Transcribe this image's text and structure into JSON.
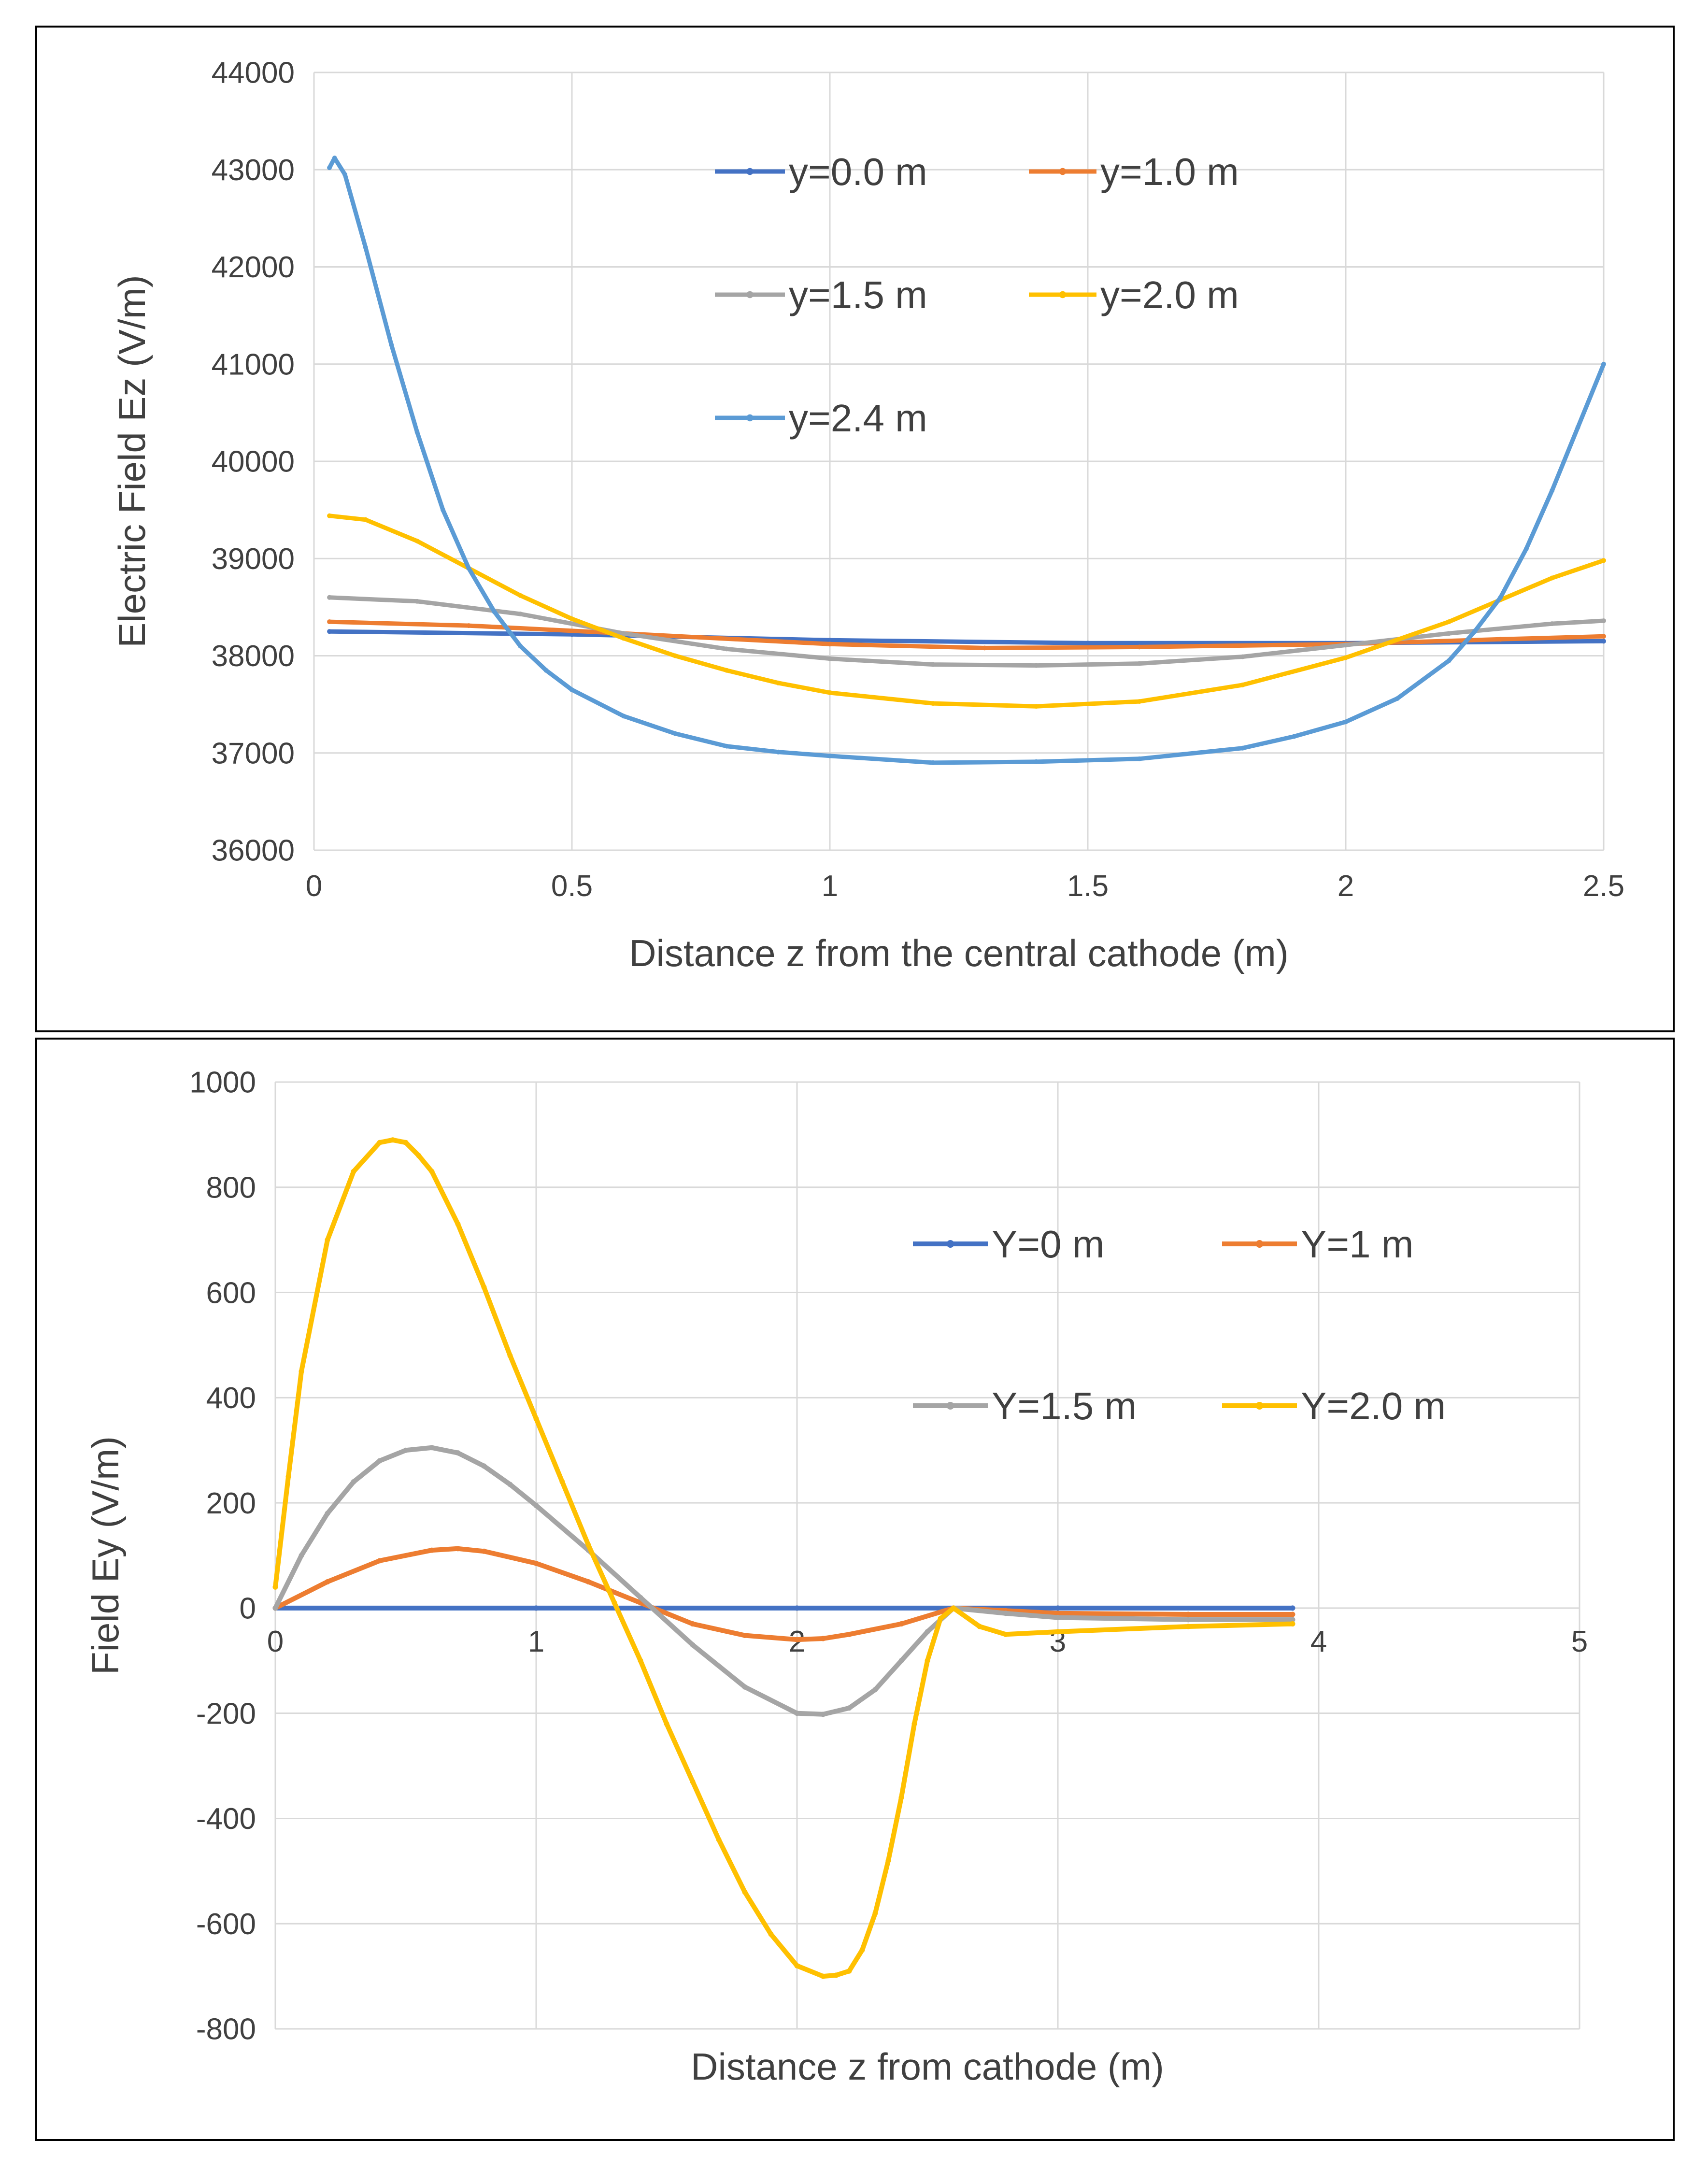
{
  "colors": {
    "blue": "#4472c4",
    "orange": "#ed7d31",
    "gray": "#a5a5a5",
    "yellow": "#ffc000",
    "lightblue": "#5b9bd5",
    "grid": "#d9d9d9",
    "text": "#404040"
  },
  "chart_data": [
    {
      "type": "line",
      "title": "",
      "xlabel": "Distance z from the central cathode (m)",
      "ylabel": "Electric Field Ez (V/m)",
      "xlim": [
        0,
        2.5
      ],
      "ylim": [
        36000,
        44000
      ],
      "xticks": [
        0,
        0.5,
        1,
        1.5,
        2,
        2.5
      ],
      "xtick_labels": [
        "0",
        "0.5",
        "1",
        "1.5",
        "2",
        "2.5"
      ],
      "yticks": [
        36000,
        37000,
        38000,
        39000,
        40000,
        41000,
        42000,
        43000,
        44000
      ],
      "ytick_labels": [
        "36000",
        "37000",
        "38000",
        "39000",
        "40000",
        "41000",
        "42000",
        "43000",
        "44000"
      ],
      "grid": true,
      "legend_position": "top-center",
      "series": [
        {
          "name": "y=0.0 m",
          "color": "blue",
          "x": [
            0.03,
            0.5,
            1.0,
            1.5,
            2.0,
            2.5
          ],
          "y": [
            38250,
            38220,
            38160,
            38130,
            38130,
            38150
          ]
        },
        {
          "name": "y=1.0 m",
          "color": "orange",
          "x": [
            0.03,
            0.3,
            0.6,
            1.0,
            1.3,
            1.6,
            2.0,
            2.3,
            2.5
          ],
          "y": [
            38350,
            38310,
            38230,
            38120,
            38080,
            38090,
            38120,
            38170,
            38200
          ]
        },
        {
          "name": "y=1.5 m",
          "color": "gray",
          "x": [
            0.03,
            0.2,
            0.4,
            0.6,
            0.8,
            1.0,
            1.2,
            1.4,
            1.6,
            1.8,
            2.0,
            2.2,
            2.4,
            2.5
          ],
          "y": [
            38600,
            38560,
            38430,
            38230,
            38070,
            37970,
            37910,
            37900,
            37920,
            37990,
            38110,
            38230,
            38330,
            38360
          ]
        },
        {
          "name": "y=2.0 m",
          "color": "yellow",
          "x": [
            0.03,
            0.1,
            0.2,
            0.3,
            0.4,
            0.5,
            0.6,
            0.7,
            0.8,
            0.9,
            1.0,
            1.2,
            1.4,
            1.6,
            1.8,
            2.0,
            2.2,
            2.4,
            2.5
          ],
          "y": [
            39440,
            39400,
            39180,
            38900,
            38620,
            38380,
            38180,
            38000,
            37850,
            37720,
            37620,
            37510,
            37480,
            37530,
            37700,
            37980,
            38350,
            38800,
            38980
          ]
        },
        {
          "name": "y=2.4 m",
          "color": "lightblue",
          "x": [
            0.03,
            0.04,
            0.06,
            0.1,
            0.15,
            0.2,
            0.25,
            0.3,
            0.35,
            0.4,
            0.45,
            0.5,
            0.6,
            0.7,
            0.8,
            0.9,
            1.0,
            1.2,
            1.4,
            1.6,
            1.8,
            1.9,
            2.0,
            2.1,
            2.2,
            2.25,
            2.3,
            2.35,
            2.4,
            2.45,
            2.5
          ],
          "y": [
            43020,
            43120,
            42950,
            42200,
            41200,
            40300,
            39500,
            38900,
            38450,
            38100,
            37850,
            37650,
            37380,
            37200,
            37070,
            37010,
            36970,
            36900,
            36910,
            36940,
            37050,
            37170,
            37320,
            37560,
            37950,
            38250,
            38600,
            39100,
            39700,
            40350,
            41000
          ]
        }
      ]
    },
    {
      "type": "line",
      "title": "",
      "xlabel": "Distance z from cathode (m)",
      "ylabel": "Field Ey (V/m)",
      "xlim": [
        0,
        5
      ],
      "ylim": [
        -800,
        1000
      ],
      "xticks": [
        0,
        1,
        2,
        3,
        4,
        5
      ],
      "xtick_labels": [
        "0",
        "1",
        "2",
        "3",
        "4",
        "5"
      ],
      "yticks": [
        -800,
        -600,
        -400,
        -200,
        0,
        200,
        400,
        600,
        800,
        1000
      ],
      "ytick_labels": [
        "-800",
        "-600",
        "-400",
        "-200",
        "0",
        "200",
        "400",
        "600",
        "800",
        "1000"
      ],
      "grid": true,
      "legend_position": "right",
      "series": [
        {
          "name": "Y=0 m",
          "color": "blue",
          "x": [
            0,
            1,
            2,
            3,
            3.9
          ],
          "y": [
            0,
            0,
            0,
            0,
            0
          ]
        },
        {
          "name": "Y=1 m",
          "color": "orange",
          "x": [
            0,
            0.2,
            0.4,
            0.6,
            0.7,
            0.8,
            1.0,
            1.2,
            1.4,
            1.6,
            1.8,
            2.0,
            2.1,
            2.2,
            2.4,
            2.6,
            2.8,
            3.0,
            3.5,
            3.9
          ],
          "y": [
            0,
            50,
            90,
            110,
            113,
            108,
            85,
            50,
            10,
            -30,
            -52,
            -60,
            -58,
            -50,
            -30,
            0,
            -5,
            -10,
            -12,
            -12
          ]
        },
        {
          "name": "Y=1.5 m",
          "color": "gray",
          "x": [
            0,
            0.1,
            0.2,
            0.3,
            0.4,
            0.5,
            0.6,
            0.7,
            0.8,
            0.9,
            1.0,
            1.2,
            1.4,
            1.6,
            1.8,
            2.0,
            2.1,
            2.2,
            2.3,
            2.4,
            2.5,
            2.6,
            2.8,
            3.0,
            3.5,
            3.9
          ],
          "y": [
            0,
            100,
            180,
            240,
            280,
            300,
            305,
            295,
            270,
            235,
            195,
            110,
            20,
            -70,
            -150,
            -200,
            -202,
            -190,
            -155,
            -100,
            -45,
            0,
            -10,
            -18,
            -22,
            -22
          ]
        },
        {
          "name": "Y=2.0 m",
          "color": "yellow",
          "x": [
            0,
            0.05,
            0.1,
            0.2,
            0.3,
            0.4,
            0.45,
            0.5,
            0.55,
            0.6,
            0.7,
            0.8,
            0.9,
            1.0,
            1.1,
            1.2,
            1.3,
            1.4,
            1.5,
            1.6,
            1.7,
            1.8,
            1.9,
            2.0,
            2.1,
            2.15,
            2.2,
            2.25,
            2.3,
            2.35,
            2.4,
            2.45,
            2.5,
            2.55,
            2.6,
            2.7,
            2.8,
            3.0,
            3.5,
            3.9
          ],
          "y": [
            40,
            250,
            450,
            700,
            830,
            885,
            890,
            885,
            860,
            830,
            730,
            610,
            480,
            360,
            240,
            120,
            10,
            -100,
            -220,
            -330,
            -440,
            -540,
            -620,
            -680,
            -700,
            -698,
            -690,
            -650,
            -580,
            -480,
            -360,
            -220,
            -100,
            -20,
            0,
            -35,
            -50,
            -45,
            -35,
            -30
          ]
        }
      ]
    }
  ]
}
